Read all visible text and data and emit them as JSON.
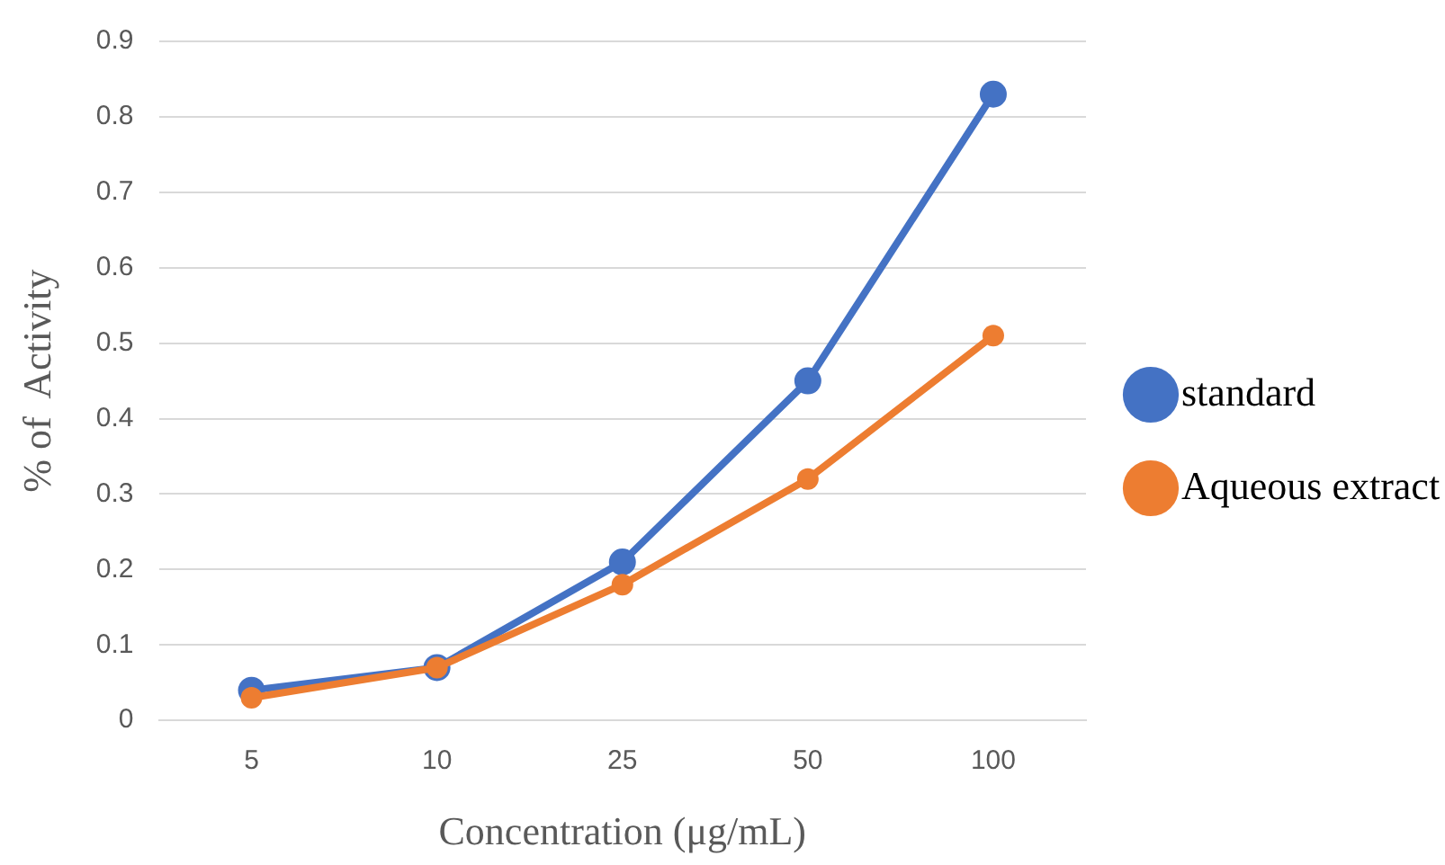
{
  "chart_data": {
    "type": "line",
    "xlabel": "Concentration (μg/mL)",
    "ylabel": "% of  Activity",
    "categories": [
      "5",
      "10",
      "25",
      "50",
      "100"
    ],
    "series": [
      {
        "name": "standard",
        "color": "#4472c4",
        "values": [
          0.04,
          0.07,
          0.21,
          0.45,
          0.83
        ]
      },
      {
        "name": "Aqueous extract",
        "color": "#ed7d31",
        "values": [
          0.03,
          0.07,
          0.18,
          0.32,
          0.51
        ]
      }
    ],
    "ylim": [
      0,
      0.9
    ],
    "yticks": [
      0,
      0.1,
      0.2,
      0.3,
      0.4,
      0.5,
      0.6,
      0.7,
      0.8,
      0.9
    ],
    "grid": "y",
    "legend": "right",
    "marker": "circle"
  }
}
